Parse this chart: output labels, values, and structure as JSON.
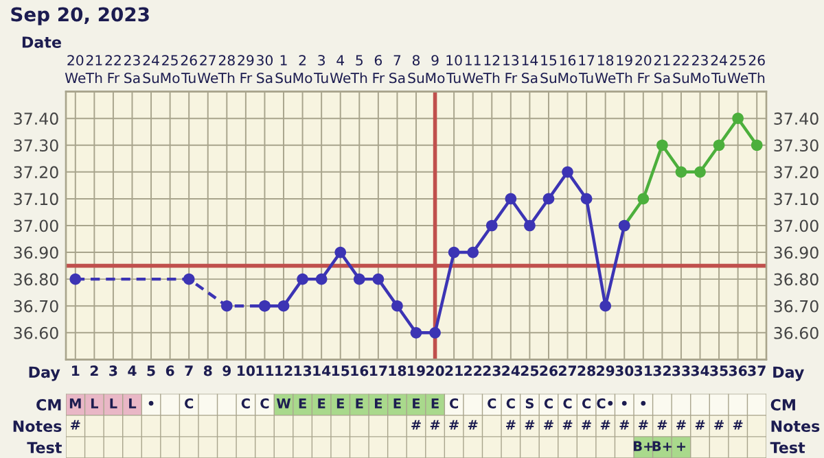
{
  "chart_data": [
    {
      "type": "line",
      "title": "Sep 20, 2023",
      "xlabel": "Day",
      "x2label": "Date",
      "xlim": [
        0.5,
        37.5
      ],
      "ylim": [
        36.5,
        37.5
      ],
      "y2lim": [
        36.5,
        37.5
      ],
      "x2lim": [
        "2023-09-19T12:00",
        "2023-10-26T12:00"
      ],
      "xticks": [
        1,
        2,
        3,
        4,
        5,
        6,
        7,
        8,
        9,
        10,
        11,
        12,
        13,
        14,
        15,
        16,
        17,
        18,
        19,
        20,
        21,
        22,
        23,
        24,
        25,
        26,
        27,
        28,
        29,
        30,
        31,
        32,
        33,
        34,
        35,
        36,
        37
      ],
      "x2ticks": [
        {
          "value": "2023-09-20",
          "label": "20\nWe"
        },
        {
          "value": "2023-09-21",
          "label": "21\nTh"
        },
        {
          "value": "2023-09-22",
          "label": "22\nFr"
        },
        {
          "value": "2023-09-23",
          "label": "23\nSa"
        },
        {
          "value": "2023-09-24",
          "label": "24\nSu"
        },
        {
          "value": "2023-09-25",
          "label": "25\nMo"
        },
        {
          "value": "2023-09-26",
          "label": "26\nTu"
        },
        {
          "value": "2023-09-27",
          "label": "27\nWe"
        },
        {
          "value": "2023-09-28",
          "label": "28\nTh"
        },
        {
          "value": "2023-09-29",
          "label": "29\nFr"
        },
        {
          "value": "2023-09-30",
          "label": "30\nSa"
        },
        {
          "value": "2023-10-01",
          "label": "1\nSu"
        },
        {
          "value": "2023-10-02",
          "label": "2\nMo"
        },
        {
          "value": "2023-10-03",
          "label": "3\nTu"
        },
        {
          "value": "2023-10-04",
          "label": "4\nWe"
        },
        {
          "value": "2023-10-05",
          "label": "5\nTh"
        },
        {
          "value": "2023-10-06",
          "label": "6\nFr"
        },
        {
          "value": "2023-10-07",
          "label": "7\nSa"
        },
        {
          "value": "2023-10-08",
          "label": "8\nSu"
        },
        {
          "value": "2023-10-09",
          "label": "9\nMo"
        },
        {
          "value": "2023-10-10",
          "label": "10\nTu"
        },
        {
          "value": "2023-10-11",
          "label": "11\nWe"
        },
        {
          "value": "2023-10-12",
          "label": "12\nTh"
        },
        {
          "value": "2023-10-13",
          "label": "13\nFr"
        },
        {
          "value": "2023-10-14",
          "label": "14\nSa"
        },
        {
          "value": "2023-10-15",
          "label": "15\nSu"
        },
        {
          "value": "2023-10-16",
          "label": "16\nMo"
        },
        {
          "value": "2023-10-17",
          "label": "17\nTu"
        },
        {
          "value": "2023-10-18",
          "label": "18\nWe"
        },
        {
          "value": "2023-10-19",
          "label": "19\nTh"
        },
        {
          "value": "2023-10-20",
          "label": "20\nFr"
        },
        {
          "value": "2023-10-21",
          "label": "21\nSa"
        },
        {
          "value": "2023-10-22",
          "label": "22\nSu"
        },
        {
          "value": "2023-10-23",
          "label": "23\nMo"
        },
        {
          "value": "2023-10-24",
          "label": "24\nTu"
        },
        {
          "value": "2023-10-25",
          "label": "25\nWe"
        },
        {
          "value": "2023-10-26",
          "label": "26\nTh"
        }
      ],
      "yticks": [
        {
          "value": 36.6,
          "label": "36.60"
        },
        {
          "value": 36.7,
          "label": "36.70"
        },
        {
          "value": 36.8,
          "label": "36.80"
        },
        {
          "value": 36.9,
          "label": "36.90"
        },
        {
          "value": 37.0,
          "label": "37.00"
        },
        {
          "value": 37.1,
          "label": "37.10"
        },
        {
          "value": 37.2,
          "label": "37.20"
        },
        {
          "value": 37.3,
          "label": "37.30"
        },
        {
          "value": 37.4,
          "label": "37.40"
        }
      ],
      "y2ticks": [
        {
          "value": 36.6,
          "label": "36.60"
        },
        {
          "value": 36.7,
          "label": "36.70"
        },
        {
          "value": 36.8,
          "label": "36.80"
        },
        {
          "value": 36.9,
          "label": "36.90"
        },
        {
          "value": 37.0,
          "label": "37.00"
        },
        {
          "value": 37.1,
          "label": "37.10"
        },
        {
          "value": 37.2,
          "label": "37.20"
        },
        {
          "value": 37.3,
          "label": "37.30"
        },
        {
          "value": 37.4,
          "label": "37.40"
        }
      ],
      "grid": "xy",
      "legend": false,
      "marker": "circle",
      "ref_lines": [
        {
          "axis": "y",
          "value": 36.85,
          "color": "#c0504d"
        },
        {
          "axis": "x",
          "value": 20,
          "color": "#c0504d"
        }
      ],
      "series": [
        {
          "color": "#3c34b4",
          "line_style": "dashed",
          "x": [
            1,
            7,
            9,
            11
          ],
          "values": [
            36.8,
            36.8,
            36.7,
            36.7
          ]
        },
        {
          "color": "#4caf3c",
          "line_style": "solid",
          "x": [
            30,
            31,
            32,
            33,
            34,
            35,
            36,
            37
          ],
          "values": [
            37.0,
            37.1,
            37.3,
            37.2,
            37.2,
            37.3,
            37.4,
            37.3
          ]
        },
        {
          "color": "#3c34b4",
          "line_style": "solid",
          "x": [
            11,
            12,
            13,
            14,
            15,
            16,
            17,
            18,
            19,
            20,
            21,
            22,
            23,
            24,
            25,
            26,
            27,
            28,
            29,
            30
          ],
          "values": [
            36.7,
            36.7,
            36.8,
            36.8,
            36.9,
            36.8,
            36.8,
            36.7,
            36.6,
            36.6,
            36.9,
            36.9,
            37.0,
            37.1,
            37.0,
            37.1,
            37.2,
            37.1,
            36.7,
            37.0
          ]
        }
      ]
    },
    {
      "type": "heatmap",
      "categories": [
        null,
        null,
        null,
        null,
        null,
        null,
        null,
        null,
        null,
        null,
        null,
        null,
        null,
        null,
        null,
        null,
        null,
        null,
        null,
        null,
        null,
        null,
        null,
        null,
        null,
        null,
        null,
        null,
        null,
        null,
        null,
        null,
        null,
        null,
        null,
        null,
        null
      ],
      "y_categories": [
        "CM",
        "Notes",
        "Test"
      ],
      "y2_categories": [
        "CM",
        "Notes",
        "Test"
      ],
      "cells": [
        [
          null,
          null,
          null,
          null,
          null,
          null,
          null,
          null,
          null,
          null,
          null,
          null,
          null,
          null,
          null,
          null,
          null,
          null,
          null,
          null,
          null,
          null,
          null,
          null,
          null,
          null,
          null,
          null,
          null,
          null,
          null,
          null,
          null,
          null,
          null,
          null,
          null
        ],
        [
          null,
          null,
          null,
          null,
          null,
          null,
          null,
          null,
          null,
          null,
          null,
          null,
          null,
          null,
          null,
          null,
          null,
          null,
          null,
          null,
          null,
          null,
          null,
          null,
          null,
          null,
          null,
          null,
          null,
          null,
          null,
          null,
          null,
          null,
          null,
          null,
          null
        ],
        [
          null,
          null,
          null,
          null,
          null,
          null,
          null,
          null,
          null,
          null,
          null,
          null,
          null,
          null,
          null,
          null,
          null,
          null,
          null,
          null,
          null,
          null,
          null,
          null,
          null,
          null,
          null,
          null,
          null,
          null,
          null,
          null,
          null,
          null,
          null,
          null,
          null
        ]
      ],
      "cell_labels": [
        [
          "M",
          "L",
          "L",
          "L",
          "•",
          null,
          "C",
          null,
          null,
          "C",
          "C",
          "W",
          "E",
          "E",
          "E",
          "E",
          "E",
          "E",
          "E",
          "E",
          "C",
          null,
          "C",
          "C",
          "S",
          "C",
          "C",
          "C",
          "C•",
          "•",
          "•",
          null,
          null,
          null,
          null,
          null,
          null
        ],
        [
          "#",
          null,
          null,
          null,
          null,
          null,
          null,
          null,
          null,
          null,
          null,
          null,
          null,
          null,
          null,
          null,
          null,
          null,
          "#",
          "#",
          "#",
          "#",
          null,
          "#",
          "#",
          "#",
          "#",
          "#",
          "#",
          "#",
          "#",
          "#",
          "#",
          "#",
          "#",
          "#",
          null
        ],
        [
          null,
          null,
          null,
          null,
          null,
          null,
          null,
          null,
          null,
          null,
          null,
          null,
          null,
          null,
          null,
          null,
          null,
          null,
          null,
          null,
          null,
          null,
          null,
          null,
          null,
          null,
          null,
          null,
          null,
          null,
          "B+",
          "B+",
          "+",
          null,
          null,
          null,
          null
        ]
      ],
      "colors": [
        [
          "#e9b7c6",
          "#e9b7c6",
          "#e9b7c6",
          "#e9b7c6",
          "#fbfaf0",
          "#fbfaf0",
          "#fbfaf0",
          "#fbfaf0",
          "#fbfaf0",
          "#fbfaf0",
          "#fbfaf0",
          "#a9d98c",
          "#a9d98c",
          "#a9d98c",
          "#a9d98c",
          "#a9d98c",
          "#a9d98c",
          "#a9d98c",
          "#a9d98c",
          "#a9d98c",
          "#fbfaf0",
          "#fbfaf0",
          "#fbfaf0",
          "#fbfaf0",
          "#fbfaf0",
          "#fbfaf0",
          "#fbfaf0",
          "#fbfaf0",
          "#fbfaf0",
          "#fbfaf0",
          "#fbfaf0",
          "#fbfaf0",
          "#fbfaf0",
          "#fbfaf0",
          "#fbfaf0",
          "#fbfaf0",
          "#fbfaf0"
        ],
        [
          "#f7f4e0",
          "#f7f4e0",
          "#f7f4e0",
          "#f7f4e0",
          "#f7f4e0",
          "#f7f4e0",
          "#f7f4e0",
          "#f7f4e0",
          "#f7f4e0",
          "#f7f4e0",
          "#f7f4e0",
          "#f7f4e0",
          "#f7f4e0",
          "#f7f4e0",
          "#f7f4e0",
          "#f7f4e0",
          "#f7f4e0",
          "#f7f4e0",
          "#f7f4e0",
          "#f7f4e0",
          "#f7f4e0",
          "#f7f4e0",
          "#f7f4e0",
          "#f7f4e0",
          "#f7f4e0",
          "#f7f4e0",
          "#f7f4e0",
          "#f7f4e0",
          "#f7f4e0",
          "#f7f4e0",
          "#f7f4e0",
          "#f7f4e0",
          "#f7f4e0",
          "#f7f4e0",
          "#f7f4e0",
          "#f7f4e0",
          "#f7f4e0"
        ],
        [
          "#f7f4e0",
          "#f7f4e0",
          "#f7f4e0",
          "#f7f4e0",
          "#f7f4e0",
          "#f7f4e0",
          "#f7f4e0",
          "#f7f4e0",
          "#f7f4e0",
          "#f7f4e0",
          "#f7f4e0",
          "#f7f4e0",
          "#f7f4e0",
          "#f7f4e0",
          "#f7f4e0",
          "#f7f4e0",
          "#f7f4e0",
          "#f7f4e0",
          "#f7f4e0",
          "#f7f4e0",
          "#f7f4e0",
          "#f7f4e0",
          "#f7f4e0",
          "#f7f4e0",
          "#f7f4e0",
          "#f7f4e0",
          "#f7f4e0",
          "#f7f4e0",
          "#f7f4e0",
          "#f7f4e0",
          "#a9d98c",
          "#a9d98c",
          "#a9d98c",
          "#f7f4e0",
          "#f7f4e0",
          "#f7f4e0",
          "#f7f4e0"
        ]
      ]
    }
  ]
}
